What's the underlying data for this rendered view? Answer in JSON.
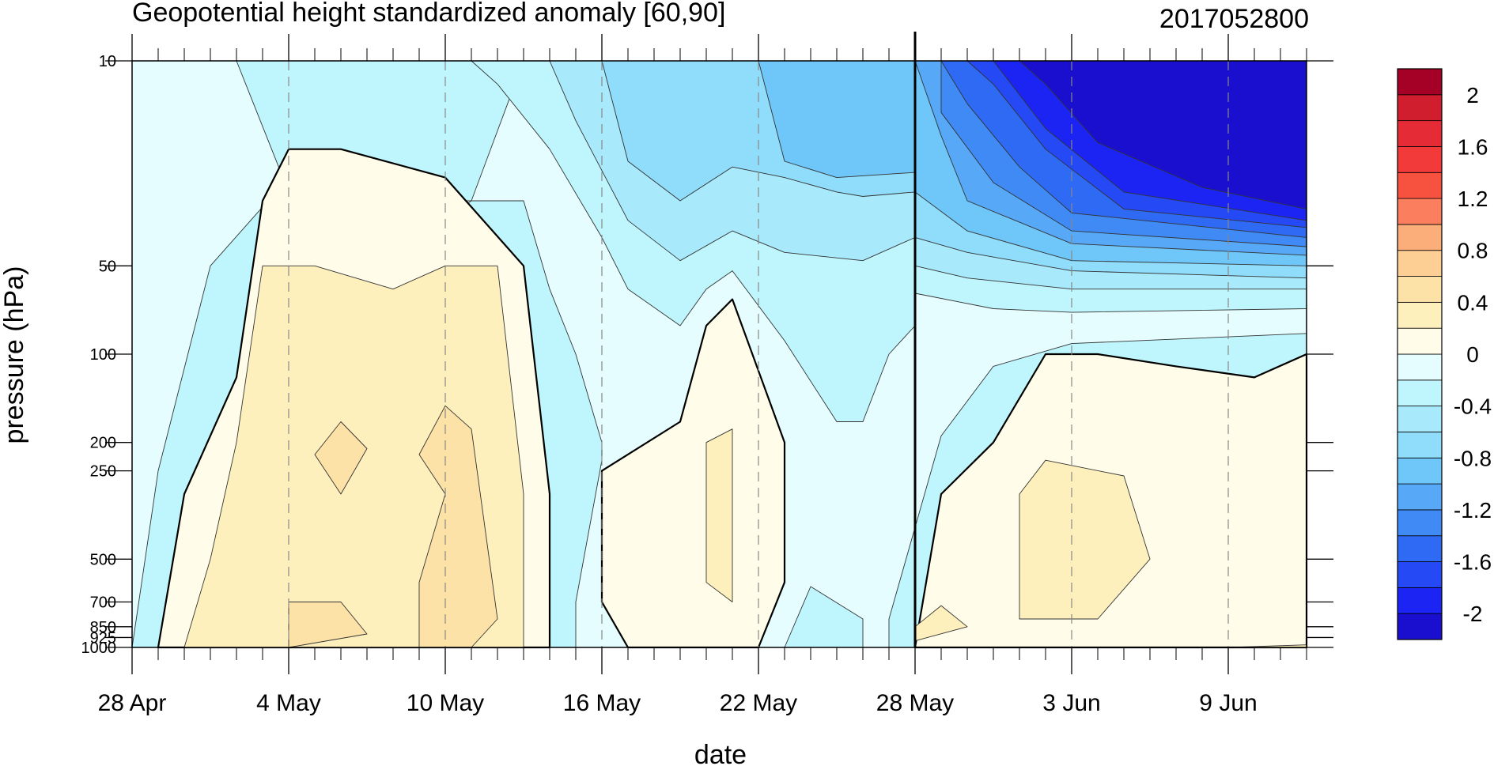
{
  "chart_data": {
    "type": "heatmap",
    "title": "Geopotential height standardized anomaly [60,90]",
    "date_stamp": "2017052800",
    "xlabel": "date",
    "ylabel": "pressure (hPa)",
    "x_range": [
      "2017-04-28",
      "2017-06-12"
    ],
    "y_scale": "log",
    "y_range_hPa": [
      1000,
      10
    ],
    "x_ticks": [
      {
        "date": "2017-04-28",
        "label": "28 Apr"
      },
      {
        "date": "2017-05-04",
        "label": "4 May"
      },
      {
        "date": "2017-05-10",
        "label": "10 May"
      },
      {
        "date": "2017-05-16",
        "label": "16 May"
      },
      {
        "date": "2017-05-22",
        "label": "22 May"
      },
      {
        "date": "2017-05-28",
        "label": "28 May"
      },
      {
        "date": "2017-06-03",
        "label": "3 Jun"
      },
      {
        "date": "2017-06-09",
        "label": "9 Jun"
      }
    ],
    "y_ticks": [
      {
        "value": 10,
        "label": "10"
      },
      {
        "value": 50,
        "label": "50"
      },
      {
        "value": 100,
        "label": "100"
      },
      {
        "value": 200,
        "label": "200"
      },
      {
        "value": 250,
        "label": "250"
      },
      {
        "value": 500,
        "label": "500"
      },
      {
        "value": 700,
        "label": "700"
      },
      {
        "value": 850,
        "label": "850"
      },
      {
        "value": 925,
        "label": "925"
      },
      {
        "value": 1000,
        "label": "1000"
      }
    ],
    "marked_date": "2017-05-28",
    "colorbar": {
      "levels": [
        -2.2,
        -2,
        -1.8,
        -1.6,
        -1.4,
        -1.2,
        -1,
        -0.8,
        -0.6,
        -0.4,
        -0.2,
        0,
        0.2,
        0.4,
        0.6,
        0.8,
        1,
        1.2,
        1.4,
        1.6,
        1.8,
        2,
        2.2
      ],
      "colors": [
        "#1a0fcf",
        "#1b24f2",
        "#2449f5",
        "#2f6af5",
        "#3f8af5",
        "#57a8f7",
        "#6fc6f9",
        "#8fdcfb",
        "#a8e9fc",
        "#bff5fc",
        "#e5fdfe",
        "#fffde9",
        "#fdf0bd",
        "#fde2a8",
        "#fdcf95",
        "#fcae7a",
        "#fb7f5e",
        "#f7513f",
        "#f33a3a",
        "#e52b35",
        "#d11e2f",
        "#a50026"
      ],
      "labels": [
        {
          "value": 2,
          "text": "2"
        },
        {
          "value": 1.6,
          "text": "1.6"
        },
        {
          "value": 1.2,
          "text": "1.2"
        },
        {
          "value": 0.8,
          "text": "0.8"
        },
        {
          "value": 0.4,
          "text": "0.4"
        },
        {
          "value": 0,
          "text": "0"
        },
        {
          "value": -0.4,
          "text": "-0.4"
        },
        {
          "value": -0.8,
          "text": "-0.8"
        },
        {
          "value": -1.2,
          "text": "-1.2"
        },
        {
          "value": -1.6,
          "text": "-1.6"
        },
        {
          "value": -2,
          "text": "-2"
        }
      ]
    },
    "contour_regions": [
      {
        "level": -0.2,
        "points": [
          [
            "2017-04-28",
            10
          ],
          [
            "2017-05-02",
            10
          ],
          [
            "2017-05-04",
            28
          ],
          [
            "2017-05-09",
            40
          ],
          [
            "2017-05-11",
            30
          ],
          [
            "2017-05-13",
            10
          ],
          [
            "2017-06-12",
            10
          ],
          [
            "2017-06-12",
            85
          ],
          [
            "2017-06-03",
            92
          ],
          [
            "2017-05-31",
            110
          ],
          [
            "2017-05-29",
            190
          ],
          [
            "2017-05-27",
            800
          ],
          [
            "2017-05-27",
            1000
          ],
          [
            "2017-05-15",
            1000
          ],
          [
            "2017-05-15",
            700
          ],
          [
            "2017-05-16",
            230
          ],
          [
            "2017-05-16",
            200
          ],
          [
            "2017-05-15",
            100
          ],
          [
            "2017-05-14",
            60
          ],
          [
            "2017-05-13",
            30
          ],
          [
            "2017-05-10",
            30
          ],
          [
            "2017-05-07",
            28
          ],
          [
            "2017-05-04",
            25
          ],
          [
            "2017-05-01",
            50
          ],
          [
            "2017-04-29",
            250
          ],
          [
            "2017-04-28",
            1000
          ]
        ]
      },
      {
        "level": 0,
        "points": [
          [
            "2017-04-29",
            1000
          ],
          [
            "2017-04-30",
            300
          ],
          [
            "2017-05-02",
            120
          ],
          [
            "2017-05-03",
            30
          ],
          [
            "2017-05-04",
            20
          ],
          [
            "2017-05-06",
            20
          ],
          [
            "2017-05-10",
            25
          ],
          [
            "2017-05-13",
            50
          ],
          [
            "2017-05-14",
            300
          ],
          [
            "2017-05-14",
            1000
          ]
        ]
      },
      {
        "level": 0,
        "points": [
          [
            "2017-05-16",
            250
          ],
          [
            "2017-05-19",
            170
          ],
          [
            "2017-05-20",
            80
          ],
          [
            "2017-05-21",
            65
          ],
          [
            "2017-05-23",
            200
          ],
          [
            "2017-05-23",
            600
          ],
          [
            "2017-05-22",
            1000
          ],
          [
            "2017-05-17",
            1000
          ],
          [
            "2017-05-16",
            700
          ]
        ]
      },
      {
        "level": 0,
        "points": [
          [
            "2017-05-28",
            1000
          ],
          [
            "2017-05-29",
            300
          ],
          [
            "2017-05-31",
            200
          ],
          [
            "2017-06-02",
            100
          ],
          [
            "2017-06-04",
            100
          ],
          [
            "2017-06-07",
            110
          ],
          [
            "2017-06-10",
            120
          ],
          [
            "2017-06-12",
            100
          ],
          [
            "2017-06-12",
            1000
          ]
        ]
      },
      {
        "level": 0.2,
        "points": [
          [
            "2017-04-30",
            1000
          ],
          [
            "2017-05-01",
            500
          ],
          [
            "2017-05-02",
            200
          ],
          [
            "2017-05-03",
            50
          ],
          [
            "2017-05-05",
            50
          ],
          [
            "2017-05-08",
            60
          ],
          [
            "2017-05-10",
            50
          ],
          [
            "2017-05-12",
            50
          ],
          [
            "2017-05-13",
            300
          ],
          [
            "2017-05-13",
            1000
          ]
        ]
      },
      {
        "level": 0.2,
        "points": [
          [
            "2017-05-20",
            200
          ],
          [
            "2017-05-21",
            180
          ],
          [
            "2017-05-21",
            700
          ],
          [
            "2017-05-20",
            600
          ],
          [
            "2017-05-20",
            400
          ]
        ]
      },
      {
        "level": 0.2,
        "points": [
          [
            "2017-06-01",
            300
          ],
          [
            "2017-06-02",
            230
          ],
          [
            "2017-06-05",
            260
          ],
          [
            "2017-06-06",
            500
          ],
          [
            "2017-06-04",
            800
          ],
          [
            "2017-06-01",
            800
          ],
          [
            "2017-06-01",
            500
          ]
        ]
      },
      {
        "level": 0.2,
        "points": [
          [
            "2017-05-28",
            850
          ],
          [
            "2017-05-29",
            720
          ],
          [
            "2017-05-30",
            850
          ],
          [
            "2017-05-28",
            950
          ]
        ]
      },
      {
        "level": 0.4,
        "points": [
          [
            "2017-05-05",
            220
          ],
          [
            "2017-05-06",
            170
          ],
          [
            "2017-05-07",
            210
          ],
          [
            "2017-05-06",
            300
          ]
        ]
      },
      {
        "level": 0.4,
        "points": [
          [
            "2017-05-09",
            220
          ],
          [
            "2017-05-10",
            150
          ],
          [
            "2017-05-11",
            180
          ],
          [
            "2017-05-12",
            800
          ],
          [
            "2017-05-11",
            1000
          ],
          [
            "2017-05-09",
            1000
          ],
          [
            "2017-05-09",
            600
          ],
          [
            "2017-05-10",
            300
          ]
        ]
      },
      {
        "level": 0.4,
        "points": [
          [
            "2017-05-04",
            700
          ],
          [
            "2017-05-06",
            700
          ],
          [
            "2017-05-07",
            900
          ],
          [
            "2017-05-04",
            1000
          ]
        ]
      },
      {
        "level": -0.4,
        "points": [
          [
            "2017-05-11",
            10
          ],
          [
            "2017-05-14",
            10
          ],
          [
            "2017-05-16",
            10
          ],
          [
            "2017-05-28",
            10
          ],
          [
            "2017-05-28",
            80
          ],
          [
            "2017-05-27",
            100
          ],
          [
            "2017-05-26",
            170
          ],
          [
            "2017-05-25",
            170
          ],
          [
            "2017-05-23",
            90
          ],
          [
            "2017-05-21",
            52
          ],
          [
            "2017-05-20",
            60
          ],
          [
            "2017-05-19",
            80
          ],
          [
            "2017-05-17",
            60
          ],
          [
            "2017-05-16",
            40
          ],
          [
            "2017-05-14",
            20
          ],
          [
            "2017-05-12",
            12
          ]
        ]
      },
      {
        "level": -0.4,
        "points": [
          [
            "2017-05-23",
            1000
          ],
          [
            "2017-05-24",
            620
          ],
          [
            "2017-05-26",
            800
          ],
          [
            "2017-05-26",
            1000
          ]
        ]
      },
      {
        "level": -0.4,
        "points": [
          [
            "2017-05-28",
            10
          ],
          [
            "2017-06-12",
            10
          ],
          [
            "2017-06-12",
            70
          ],
          [
            "2017-06-03",
            72
          ],
          [
            "2017-05-31",
            70
          ],
          [
            "2017-05-28",
            62
          ]
        ]
      },
      {
        "level": -0.6,
        "points": [
          [
            "2017-05-14",
            10
          ],
          [
            "2017-05-16",
            10
          ],
          [
            "2017-05-28",
            10
          ],
          [
            "2017-05-28",
            40
          ],
          [
            "2017-05-26",
            48
          ],
          [
            "2017-05-23",
            45
          ],
          [
            "2017-05-21",
            38
          ],
          [
            "2017-05-19",
            48
          ],
          [
            "2017-05-17",
            35
          ],
          [
            "2017-05-15",
            16
          ]
        ]
      },
      {
        "level": -0.6,
        "points": [
          [
            "2017-05-28",
            10
          ],
          [
            "2017-06-12",
            10
          ],
          [
            "2017-06-12",
            60
          ],
          [
            "2017-06-03",
            60
          ],
          [
            "2017-05-30",
            55
          ],
          [
            "2017-05-28",
            50
          ]
        ]
      },
      {
        "level": -0.8,
        "points": [
          [
            "2017-05-16",
            10
          ],
          [
            "2017-05-28",
            10
          ],
          [
            "2017-05-28",
            28
          ],
          [
            "2017-05-26",
            29
          ],
          [
            "2017-05-25",
            28
          ],
          [
            "2017-05-23",
            25
          ],
          [
            "2017-05-21",
            23
          ],
          [
            "2017-05-19",
            30
          ],
          [
            "2017-05-17",
            22
          ]
        ]
      },
      {
        "level": -0.8,
        "points": [
          [
            "2017-05-28",
            10
          ],
          [
            "2017-06-12",
            10
          ],
          [
            "2017-06-12",
            55
          ],
          [
            "2017-06-03",
            52
          ],
          [
            "2017-05-30",
            45
          ],
          [
            "2017-05-28",
            40
          ]
        ]
      },
      {
        "level": -1,
        "points": [
          [
            "2017-05-22",
            10
          ],
          [
            "2017-05-28",
            10
          ],
          [
            "2017-05-28",
            24
          ],
          [
            "2017-05-25",
            25
          ],
          [
            "2017-05-23",
            22
          ]
        ]
      },
      {
        "level": -1,
        "points": [
          [
            "2017-05-28",
            10
          ],
          [
            "2017-06-12",
            10
          ],
          [
            "2017-06-12",
            50
          ],
          [
            "2017-06-03",
            48
          ],
          [
            "2017-05-30",
            38
          ],
          [
            "2017-05-28",
            28
          ]
        ]
      },
      {
        "level": -1.2,
        "points": [
          [
            "2017-05-28",
            10
          ],
          [
            "2017-06-12",
            10
          ],
          [
            "2017-06-12",
            46
          ],
          [
            "2017-06-03",
            42
          ],
          [
            "2017-05-30",
            30
          ],
          [
            "2017-05-29",
            18
          ]
        ]
      },
      {
        "level": -1.4,
        "points": [
          [
            "2017-05-29",
            10
          ],
          [
            "2017-06-12",
            10
          ],
          [
            "2017-06-12",
            43
          ],
          [
            "2017-06-03",
            38
          ],
          [
            "2017-05-31",
            26
          ],
          [
            "2017-05-29",
            15
          ]
        ]
      },
      {
        "level": -1.6,
        "points": [
          [
            "2017-05-29",
            10
          ],
          [
            "2017-06-12",
            10
          ],
          [
            "2017-06-12",
            40
          ],
          [
            "2017-06-03",
            33
          ],
          [
            "2017-06-01",
            23
          ],
          [
            "2017-05-30",
            14
          ]
        ]
      },
      {
        "level": -1.8,
        "points": [
          [
            "2017-05-30",
            10
          ],
          [
            "2017-06-12",
            10
          ],
          [
            "2017-06-12",
            37
          ],
          [
            "2017-06-05",
            32
          ],
          [
            "2017-06-02",
            20
          ],
          [
            "2017-05-31",
            12
          ]
        ]
      },
      {
        "level": -2,
        "points": [
          [
            "2017-05-31",
            10
          ],
          [
            "2017-06-12",
            10
          ],
          [
            "2017-06-12",
            35
          ],
          [
            "2017-06-05",
            28
          ],
          [
            "2017-06-02",
            17
          ]
        ]
      },
      {
        "level": -2.2,
        "points": [
          [
            "2017-06-01",
            10
          ],
          [
            "2017-06-12",
            10
          ],
          [
            "2017-06-12",
            32
          ],
          [
            "2017-06-08",
            27
          ],
          [
            "2017-06-04",
            19
          ],
          [
            "2017-06-02",
            12
          ]
        ]
      },
      {
        "level": 0.2,
        "points": [
          [
            "2017-06-09",
            1000
          ],
          [
            "2017-06-12",
            980
          ],
          [
            "2017-06-12",
            1000
          ]
        ]
      }
    ]
  }
}
